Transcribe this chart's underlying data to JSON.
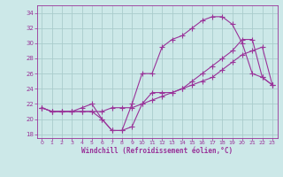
{
  "xlabel": "Windchill (Refroidissement éolien,°C)",
  "x_ticks": [
    0,
    1,
    2,
    3,
    4,
    5,
    6,
    7,
    8,
    9,
    10,
    11,
    12,
    13,
    14,
    15,
    16,
    17,
    18,
    19,
    20,
    21,
    22,
    23
  ],
  "ylim": [
    17.5,
    35
  ],
  "yticks": [
    18,
    20,
    22,
    24,
    26,
    28,
    30,
    32,
    34
  ],
  "line_color": "#993399",
  "bg_color": "#cce8e8",
  "grid_color": "#aacccc",
  "line1_x": [
    0,
    1,
    2,
    3,
    4,
    5,
    6,
    7,
    8,
    9,
    10,
    11,
    12,
    13,
    14,
    15,
    16,
    17,
    18,
    19,
    20,
    21,
    22,
    23
  ],
  "line1_y": [
    21.5,
    21.0,
    21.0,
    21.0,
    21.5,
    22.0,
    20.0,
    18.5,
    18.5,
    22.0,
    26.0,
    26.0,
    29.5,
    30.5,
    31.0,
    32.0,
    33.0,
    33.5,
    33.5,
    32.5,
    30.0,
    26.0,
    25.5,
    24.5
  ],
  "line2_x": [
    0,
    1,
    2,
    3,
    4,
    5,
    6,
    7,
    8,
    9,
    10,
    11,
    12,
    13,
    14,
    15,
    16,
    17,
    18,
    19,
    20,
    21,
    22,
    23
  ],
  "line2_y": [
    21.5,
    21.0,
    21.0,
    21.0,
    21.0,
    21.0,
    20.0,
    18.5,
    18.5,
    19.0,
    22.0,
    23.5,
    23.5,
    23.5,
    24.0,
    25.0,
    26.0,
    27.0,
    28.0,
    29.0,
    30.5,
    30.5,
    25.5,
    24.5
  ],
  "line3_x": [
    0,
    1,
    2,
    3,
    4,
    5,
    6,
    7,
    8,
    9,
    10,
    11,
    12,
    13,
    14,
    15,
    16,
    17,
    18,
    19,
    20,
    21,
    22,
    23
  ],
  "line3_y": [
    21.5,
    21.0,
    21.0,
    21.0,
    21.0,
    21.0,
    21.0,
    21.5,
    21.5,
    21.5,
    22.0,
    22.5,
    23.0,
    23.5,
    24.0,
    24.5,
    25.0,
    25.5,
    26.5,
    27.5,
    28.5,
    29.0,
    29.5,
    24.5
  ]
}
